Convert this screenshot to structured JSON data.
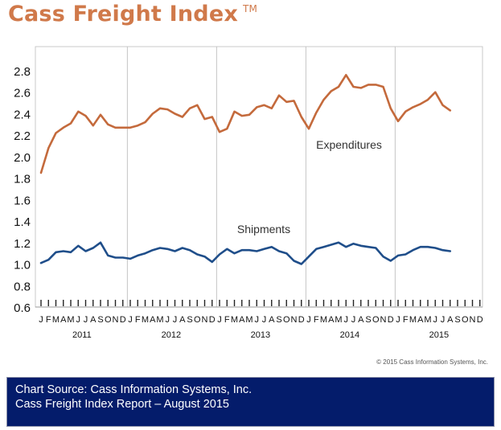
{
  "title": "Cass Freight Index",
  "trademark": "TM",
  "copyright": "© 2015 Cass Information Systems, Inc.",
  "source_lines": [
    "Chart Source: Cass Information Systems, Inc.",
    "Cass Freight Index Report – August 2015"
  ],
  "chart_data": {
    "type": "line",
    "title": "Cass Freight Index",
    "ylim": [
      0.6,
      2.8
    ],
    "yticks": [
      "0.6",
      "0.8",
      "1.0",
      "1.2",
      "1.4",
      "1.6",
      "1.8",
      "2.0",
      "2.2",
      "2.4",
      "2.6",
      "2.8"
    ],
    "grid": "vertical lines between years",
    "month_letters": [
      "J",
      "F",
      "M",
      "A",
      "M",
      "J",
      "J",
      "A",
      "S",
      "O",
      "N",
      "D"
    ],
    "years": [
      "2011",
      "2012",
      "2013",
      "2014",
      "2015"
    ],
    "series": [
      {
        "name": "Expenditures",
        "color": "#c46a3c",
        "values": [
          1.85,
          2.08,
          2.22,
          2.27,
          2.31,
          2.42,
          2.38,
          2.29,
          2.39,
          2.3,
          2.27,
          2.27,
          2.27,
          2.29,
          2.32,
          2.4,
          2.45,
          2.44,
          2.4,
          2.37,
          2.45,
          2.48,
          2.35,
          2.37,
          2.23,
          2.26,
          2.42,
          2.38,
          2.39,
          2.46,
          2.48,
          2.45,
          2.57,
          2.51,
          2.52,
          2.37,
          2.26,
          2.41,
          2.53,
          2.61,
          2.65,
          2.76,
          2.65,
          2.64,
          2.67,
          2.67,
          2.65,
          2.45,
          2.33,
          2.42,
          2.46,
          2.49,
          2.53,
          2.6,
          2.48,
          2.43
        ]
      },
      {
        "name": "Shipments",
        "color": "#1f4e8a",
        "values": [
          1.01,
          1.04,
          1.11,
          1.12,
          1.11,
          1.17,
          1.12,
          1.15,
          1.2,
          1.08,
          1.06,
          1.06,
          1.05,
          1.08,
          1.1,
          1.13,
          1.15,
          1.14,
          1.12,
          1.15,
          1.13,
          1.09,
          1.07,
          1.02,
          1.09,
          1.14,
          1.1,
          1.13,
          1.13,
          1.12,
          1.14,
          1.16,
          1.12,
          1.1,
          1.03,
          1.0,
          1.07,
          1.14,
          1.16,
          1.18,
          1.2,
          1.16,
          1.19,
          1.17,
          1.16,
          1.15,
          1.07,
          1.03,
          1.08,
          1.09,
          1.13,
          1.16,
          1.16,
          1.15,
          1.13,
          1.12
        ]
      }
    ]
  }
}
